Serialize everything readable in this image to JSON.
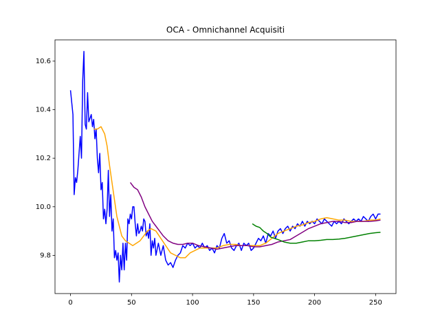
{
  "chart_data": {
    "type": "line",
    "title": "OCA - Omnichannel Acquisiti",
    "xlim": [
      -12.7,
      266.7
    ],
    "xticks": [
      0,
      50,
      100,
      150,
      200,
      250
    ],
    "ylim": [
      9.6425,
      10.6875
    ],
    "yticks": [
      9.8,
      {
        "value": 10,
        "label": "10.0"
      },
      10.2,
      10.4,
      10.6
    ],
    "series": [
      {
        "color": "#0000ff",
        "x": [
          0,
          2,
          3,
          4,
          5,
          6,
          7,
          8,
          9,
          10,
          11,
          12,
          13,
          14,
          15,
          17,
          18,
          19,
          20,
          21,
          22,
          23,
          24,
          25,
          26,
          27,
          28,
          29,
          30,
          31,
          32,
          33,
          34,
          35,
          36,
          37,
          38,
          39,
          40,
          41,
          42,
          43,
          44,
          45,
          46,
          47,
          48,
          49,
          50,
          51,
          52,
          53,
          54,
          55,
          56,
          57,
          58,
          59,
          60,
          61,
          62,
          63,
          64,
          65,
          66,
          67,
          68,
          69,
          70,
          72,
          74,
          76,
          78,
          80,
          82,
          84,
          86,
          88,
          90,
          92,
          94,
          96,
          98,
          100,
          102,
          104,
          106,
          108,
          110,
          112,
          114,
          116,
          118,
          120,
          122,
          124,
          126,
          128,
          130,
          132,
          134,
          136,
          138,
          140,
          142,
          144,
          146,
          148,
          150,
          152,
          154,
          156,
          158,
          160,
          162,
          164,
          166,
          168,
          170,
          172,
          174,
          176,
          178,
          180,
          182,
          184,
          186,
          188,
          190,
          192,
          194,
          196,
          198,
          200,
          202,
          204,
          206,
          208,
          210,
          212,
          214,
          216,
          218,
          220,
          222,
          224,
          226,
          228,
          230,
          232,
          234,
          236,
          238,
          240,
          242,
          244,
          246,
          248,
          250,
          252,
          254
        ],
        "values": [
          10.48,
          10.38,
          10.05,
          10.12,
          10.1,
          10.15,
          10.22,
          10.29,
          10.2,
          10.52,
          10.64,
          10.34,
          10.32,
          10.47,
          10.35,
          10.38,
          10.33,
          10.36,
          10.28,
          10.32,
          10.2,
          10.14,
          10.22,
          10.07,
          10.1,
          9.95,
          9.99,
          9.93,
          9.99,
          10.15,
          9.96,
          10.05,
          9.9,
          9.95,
          9.79,
          9.82,
          9.78,
          9.81,
          9.69,
          9.8,
          9.74,
          9.85,
          9.74,
          9.85,
          9.78,
          9.95,
          9.93,
          9.97,
          9.95,
          10.0,
          10.0,
          9.93,
          9.88,
          9.93,
          9.89,
          9.9,
          9.92,
          9.9,
          9.95,
          9.94,
          9.88,
          9.9,
          9.87,
          9.93,
          9.8,
          9.86,
          9.83,
          9.87,
          9.8,
          9.85,
          9.8,
          9.84,
          9.78,
          9.76,
          9.77,
          9.75,
          9.78,
          9.8,
          9.81,
          9.84,
          9.83,
          9.85,
          9.84,
          9.85,
          9.83,
          9.84,
          9.83,
          9.85,
          9.83,
          9.84,
          9.82,
          9.83,
          9.81,
          9.84,
          9.83,
          9.87,
          9.89,
          9.85,
          9.86,
          9.83,
          9.82,
          9.84,
          9.85,
          9.82,
          9.85,
          9.84,
          9.85,
          9.82,
          9.83,
          9.85,
          9.87,
          9.86,
          9.88,
          9.85,
          9.89,
          9.88,
          9.9,
          9.87,
          9.9,
          9.91,
          9.89,
          9.91,
          9.92,
          9.9,
          9.92,
          9.91,
          9.93,
          9.92,
          9.94,
          9.92,
          9.94,
          9.93,
          9.94,
          9.93,
          9.95,
          9.94,
          9.93,
          9.95,
          9.94,
          9.93,
          9.92,
          9.94,
          9.93,
          9.94,
          9.93,
          9.95,
          9.94,
          9.93,
          9.94,
          9.95,
          9.94,
          9.95,
          9.94,
          9.96,
          9.95,
          9.94,
          9.96,
          9.97,
          9.95,
          9.97,
          9.97
        ]
      },
      {
        "color": "#ffa500",
        "x": [
          19,
          22,
          25,
          28,
          30,
          32,
          34,
          36,
          38,
          40,
          42,
          45,
          48,
          51,
          54,
          57,
          60,
          63,
          66,
          70,
          74,
          78,
          82,
          86,
          90,
          94,
          98,
          102,
          106,
          110,
          115,
          120,
          125,
          130,
          135,
          140,
          145,
          150,
          155,
          160,
          165,
          170,
          175,
          180,
          185,
          190,
          195,
          200,
          205,
          210,
          215,
          220,
          225,
          230,
          235,
          240,
          245,
          250,
          254
        ],
        "values": [
          10.32,
          10.32,
          10.33,
          10.3,
          10.25,
          10.17,
          10.1,
          10.03,
          9.96,
          9.92,
          9.88,
          9.86,
          9.85,
          9.84,
          9.85,
          9.86,
          9.88,
          9.9,
          9.91,
          9.9,
          9.87,
          9.84,
          9.81,
          9.8,
          9.79,
          9.79,
          9.81,
          9.82,
          9.83,
          9.83,
          9.83,
          9.83,
          9.84,
          9.845,
          9.845,
          9.84,
          9.84,
          9.84,
          9.84,
          9.85,
          9.87,
          9.89,
          9.9,
          9.91,
          9.92,
          9.925,
          9.935,
          9.94,
          9.95,
          9.955,
          9.95,
          9.945,
          9.945,
          9.94,
          9.94,
          9.94,
          9.945,
          9.945,
          9.95
        ]
      },
      {
        "color": "#800080",
        "x": [
          49,
          52,
          55,
          58,
          61,
          64,
          67,
          70,
          73,
          76,
          80,
          84,
          88,
          92,
          96,
          100,
          105,
          110,
          115,
          120,
          125,
          130,
          135,
          140,
          145,
          150,
          155,
          160,
          165,
          170,
          175,
          180,
          185,
          190,
          195,
          200,
          205,
          210,
          215,
          220,
          225,
          230,
          235,
          240,
          245,
          250,
          254
        ],
        "values": [
          10.1,
          10.08,
          10.07,
          10.04,
          10.0,
          9.97,
          9.94,
          9.92,
          9.9,
          9.88,
          9.86,
          9.85,
          9.845,
          9.845,
          9.85,
          9.85,
          9.84,
          9.835,
          9.83,
          9.825,
          9.83,
          9.835,
          9.84,
          9.84,
          9.84,
          9.835,
          9.835,
          9.84,
          9.845,
          9.855,
          9.86,
          9.865,
          9.88,
          9.895,
          9.91,
          9.92,
          9.93,
          9.935,
          9.94,
          9.94,
          9.935,
          9.935,
          9.94,
          9.94,
          9.94,
          9.942,
          9.945
        ]
      },
      {
        "color": "#008000",
        "x": [
          149,
          152,
          155,
          158,
          161,
          164,
          167,
          170,
          175,
          180,
          185,
          190,
          195,
          200,
          205,
          210,
          215,
          220,
          225,
          230,
          235,
          240,
          245,
          250,
          254
        ],
        "values": [
          9.93,
          9.92,
          9.915,
          9.9,
          9.89,
          9.875,
          9.87,
          9.865,
          9.855,
          9.85,
          9.85,
          9.855,
          9.86,
          9.86,
          9.862,
          9.865,
          9.865,
          9.867,
          9.87,
          9.875,
          9.88,
          9.885,
          9.89,
          9.893,
          9.895
        ]
      }
    ]
  }
}
